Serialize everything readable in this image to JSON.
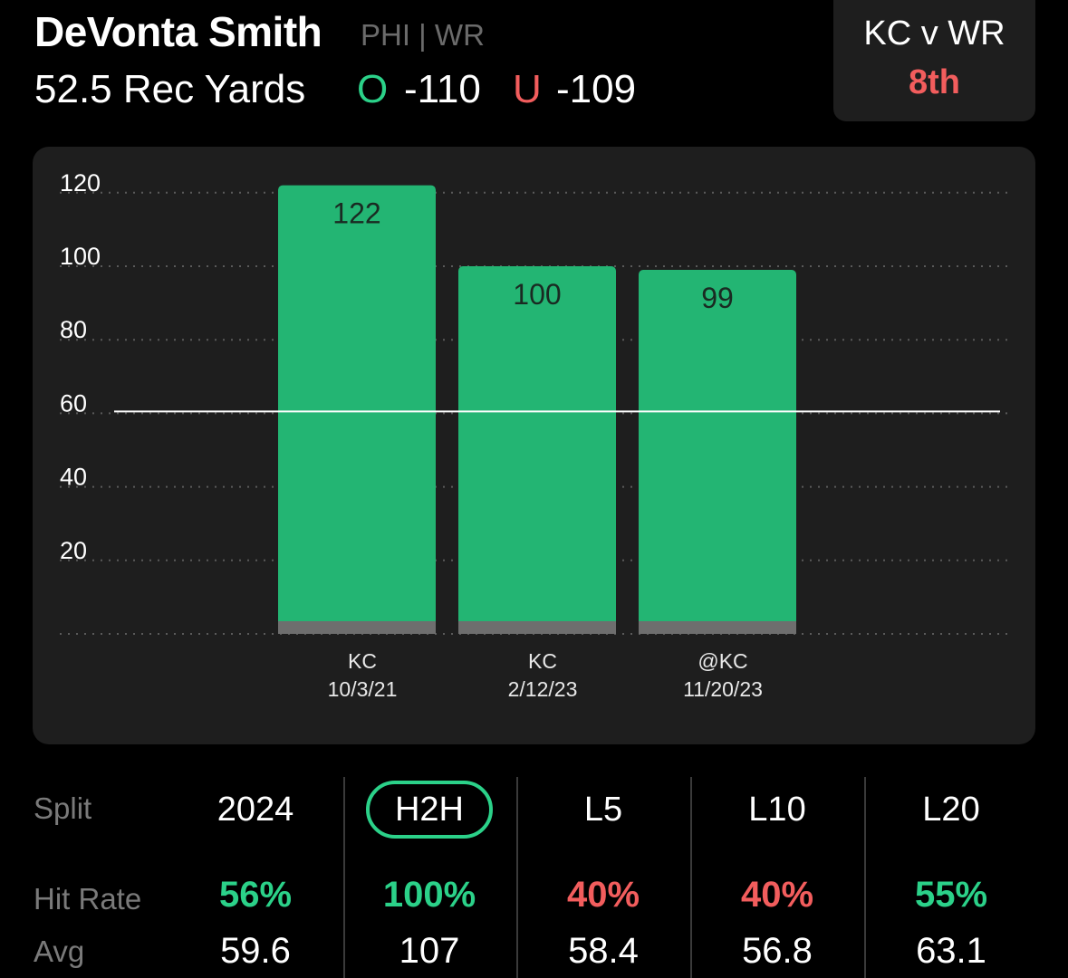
{
  "header": {
    "player_name": "DeVonta Smith",
    "team_position": "PHI | WR",
    "prop_line": "52.5 Rec Yards",
    "over_label": "O",
    "over_odds": "-110",
    "under_label": "U",
    "under_odds": "-109"
  },
  "matchup": {
    "title": "KC v WR",
    "rank": "8th"
  },
  "colors": {
    "green": "#2bd189",
    "bar_green": "#23b573",
    "red": "#f25d5d",
    "card_bg": "#1e1e1e"
  },
  "chart_data": {
    "type": "bar",
    "categories": [
      "KC 10/3/21",
      "KC 2/12/23",
      "@KC 11/20/23"
    ],
    "tick_opponents": [
      "KC",
      "KC",
      "@KC"
    ],
    "tick_dates": [
      "10/3/21",
      "2/12/23",
      "11/20/23"
    ],
    "values": [
      122,
      100,
      99
    ],
    "data_labels": [
      "122",
      "100",
      "99"
    ],
    "y_ticks": [
      20,
      40,
      60,
      80,
      100,
      120
    ],
    "ylim": [
      0,
      125
    ],
    "reference_line": 60,
    "grid": true,
    "title": "",
    "xlabel": "",
    "ylabel": ""
  },
  "stats": {
    "split_label": "Split",
    "hit_rate_label": "Hit Rate",
    "avg_label": "Avg",
    "columns": [
      {
        "split": "2024",
        "hit_rate": "56%",
        "hit_color": "#2bd189",
        "avg": "59.6",
        "active": false
      },
      {
        "split": "H2H",
        "hit_rate": "100%",
        "hit_color": "#2bd189",
        "avg": "107",
        "active": true
      },
      {
        "split": "L5",
        "hit_rate": "40%",
        "hit_color": "#f25d5d",
        "avg": "58.4",
        "active": false
      },
      {
        "split": "L10",
        "hit_rate": "40%",
        "hit_color": "#f25d5d",
        "avg": "56.8",
        "active": false
      },
      {
        "split": "L20",
        "hit_rate": "55%",
        "hit_color": "#2bd189",
        "avg": "63.1",
        "active": false
      }
    ]
  }
}
